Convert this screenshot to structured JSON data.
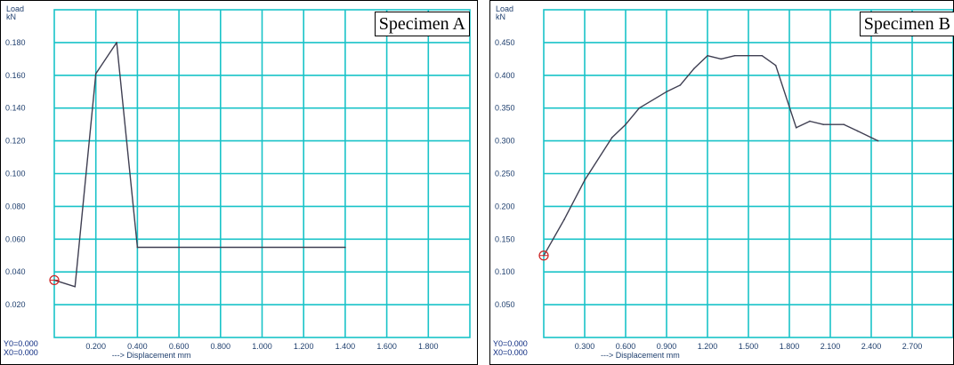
{
  "chart_data": [
    {
      "type": "line",
      "label": "Specimen A",
      "y_title_line1": "Load",
      "y_title_line2": "kN",
      "xlabel": "---> Displacement  mm",
      "origin_y": "Y0=0.000",
      "origin_x": "X0=0.000",
      "xlim": [
        0,
        2.0
      ],
      "ylim": [
        0,
        0.2
      ],
      "x_ticks": [
        0.2,
        0.4,
        0.6,
        0.8,
        1.0,
        1.2,
        1.4,
        1.6,
        1.8
      ],
      "x_tick_labels": [
        "0.200",
        "0.400",
        "0.600",
        "0.800",
        "1.000",
        "1.200",
        "1.400",
        "1.600",
        "1.800"
      ],
      "y_ticks": [
        0.02,
        0.04,
        0.06,
        0.08,
        0.1,
        0.12,
        0.14,
        0.16,
        0.18
      ],
      "y_tick_labels": [
        "0.020",
        "0.040",
        "0.060",
        "0.080",
        "0.100",
        "0.120",
        "0.140",
        "0.160",
        "0.180"
      ],
      "grid": true,
      "colors": {
        "background": "#ffffff",
        "grid": "#19c3c8",
        "line": "#3f3f52",
        "axis_text": "#1f3f6e",
        "marker": "#cc2222"
      },
      "marker": {
        "x": 0.0,
        "y": 0.035
      },
      "x": [
        0.0,
        0.1,
        0.2,
        0.3,
        0.4,
        1.4
      ],
      "y": [
        0.035,
        0.031,
        0.161,
        0.18,
        0.055,
        0.055
      ]
    },
    {
      "type": "line",
      "label": "Specimen B",
      "y_title_line1": "Load",
      "y_title_line2": "kN",
      "xlabel": "---> Displacement  mm",
      "origin_y": "Y0=0.000",
      "origin_x": "X0=0.000",
      "xlim": [
        0,
        3.0
      ],
      "ylim": [
        0,
        0.5
      ],
      "x_ticks": [
        0.3,
        0.6,
        0.9,
        1.2,
        1.5,
        1.8,
        2.1,
        2.4,
        2.7
      ],
      "x_tick_labels": [
        "0.300",
        "0.600",
        "0.900",
        "1.200",
        "1.500",
        "1.800",
        "2.100",
        "2.400",
        "2.700"
      ],
      "y_ticks": [
        0.05,
        0.1,
        0.15,
        0.2,
        0.25,
        0.3,
        0.35,
        0.4,
        0.45
      ],
      "y_tick_labels": [
        "0.050",
        "0.100",
        "0.150",
        "0.200",
        "0.250",
        "0.300",
        "0.350",
        "0.400",
        "0.450"
      ],
      "grid": true,
      "colors": {
        "background": "#ffffff",
        "grid": "#19c3c8",
        "line": "#3f3f52",
        "axis_text": "#1f3f6e",
        "marker": "#cc2222"
      },
      "marker": {
        "x": 0.0,
        "y": 0.125
      },
      "x": [
        0.0,
        0.15,
        0.3,
        0.5,
        0.6,
        0.7,
        0.9,
        1.0,
        1.1,
        1.2,
        1.3,
        1.4,
        1.6,
        1.7,
        1.85,
        1.95,
        2.05,
        2.2,
        2.3,
        2.45
      ],
      "y": [
        0.125,
        0.18,
        0.24,
        0.305,
        0.325,
        0.35,
        0.375,
        0.385,
        0.41,
        0.43,
        0.425,
        0.43,
        0.43,
        0.415,
        0.32,
        0.33,
        0.325,
        0.325,
        0.315,
        0.3
      ]
    }
  ]
}
